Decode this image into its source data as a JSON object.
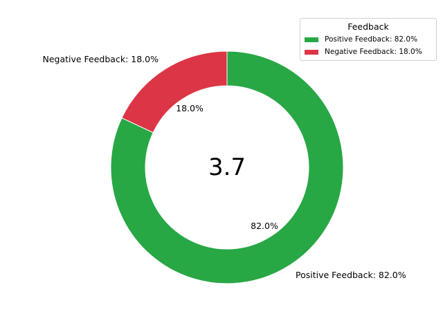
{
  "chart_data": {
    "type": "pie",
    "donut": true,
    "center_text": "3.7",
    "categories": [
      "Positive Feedback",
      "Negative Feedback"
    ],
    "values": [
      82.0,
      18.0
    ],
    "colors": [
      "#28a745",
      "#dc3545"
    ],
    "outer_labels": [
      "Positive Feedback: 82.0%",
      "Negative Feedback: 18.0%"
    ],
    "pct_labels": [
      "82.0%",
      "18.0%"
    ],
    "start_angle_deg": 90,
    "direction": "clockwise",
    "legend": {
      "title": "Feedback",
      "placement": "top-right",
      "entries": [
        "Positive Feedback: 82.0%",
        "Negative Feedback: 18.0%"
      ]
    }
  }
}
